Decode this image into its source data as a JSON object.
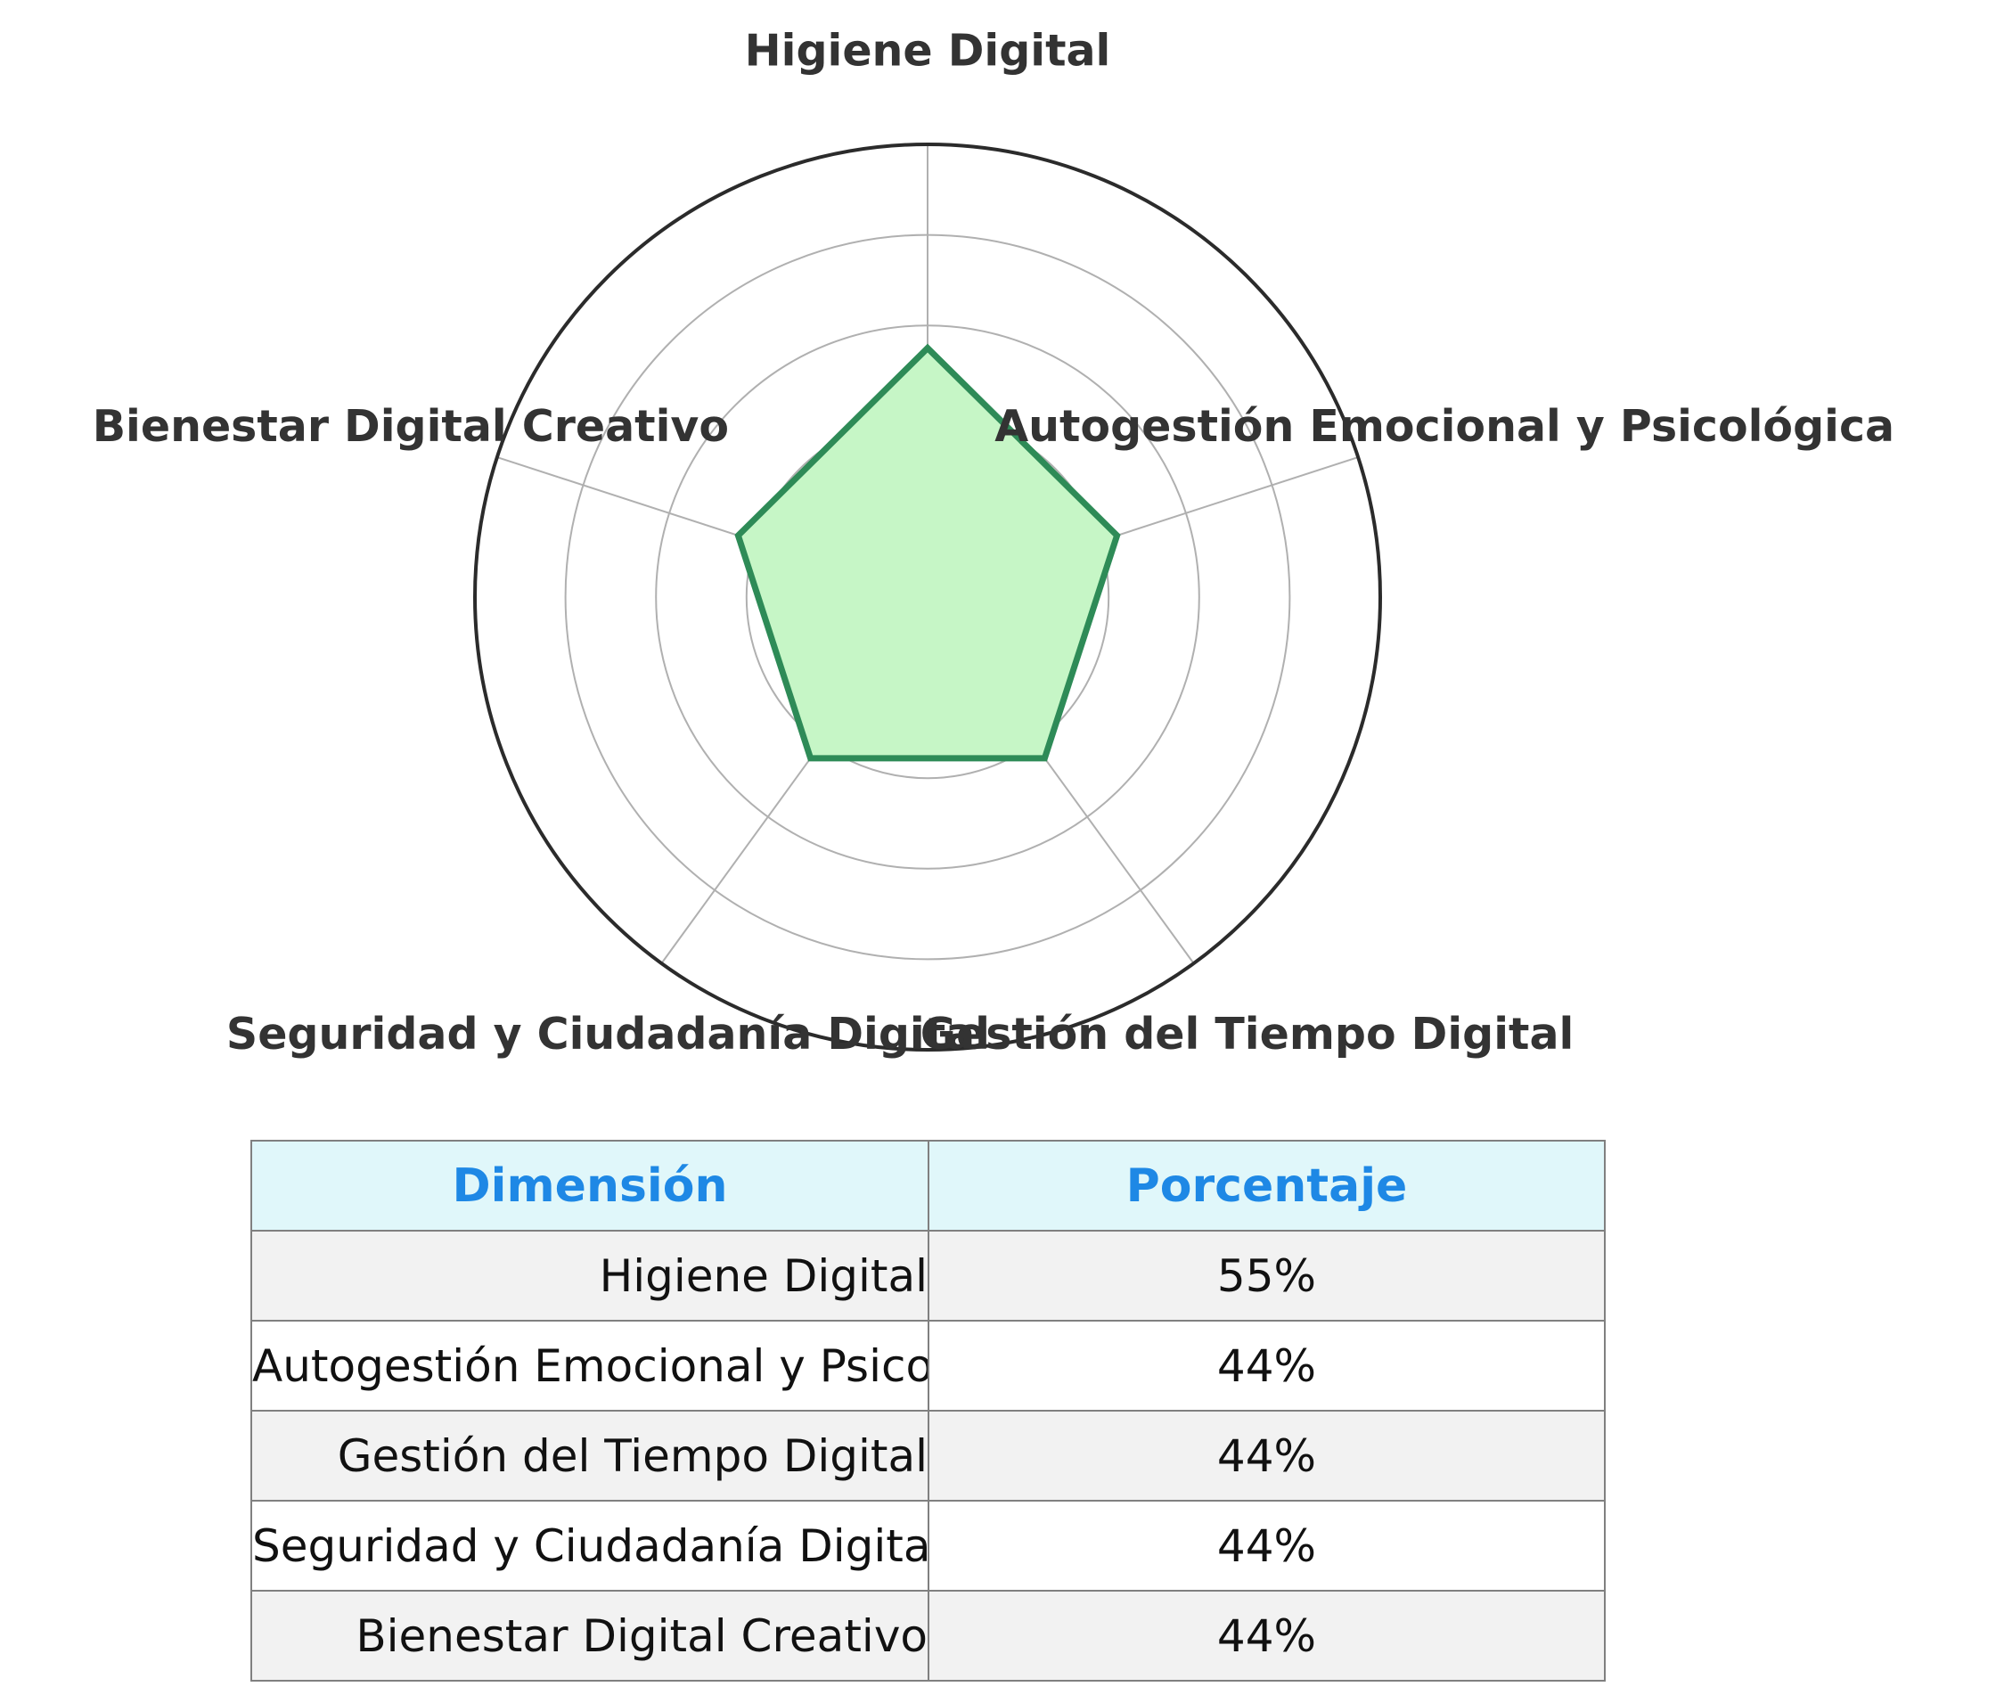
{
  "chart_data": {
    "type": "radar",
    "categories": [
      "Higiene Digital",
      "Autogestión Emocional y Psicológica",
      "Gestión del Tiempo Digital",
      "Seguridad y Ciudadanía Digital",
      "Bienestar Digital Creativo"
    ],
    "values": [
      55,
      44,
      44,
      44,
      44
    ],
    "rlim": [
      0,
      100
    ],
    "grid": true,
    "colors": {
      "line": "#2e8b57",
      "fill": "#c6f6c6",
      "grid": "#b0b0b0",
      "outline": "#2b2b2b"
    }
  },
  "table": {
    "headers": [
      "Dimensión",
      "Porcentaje"
    ],
    "rows": [
      [
        "Higiene Digital",
        "55%"
      ],
      [
        "Autogestión Emocional y Psicológica",
        "44%"
      ],
      [
        "Gestión del Tiempo Digital",
        "44%"
      ],
      [
        "Seguridad y Ciudadanía Digital",
        "44%"
      ],
      [
        "Bienestar Digital Creativo",
        "44%"
      ]
    ],
    "header_bg": "#e0f7fa",
    "header_color": "#1e88e5"
  }
}
